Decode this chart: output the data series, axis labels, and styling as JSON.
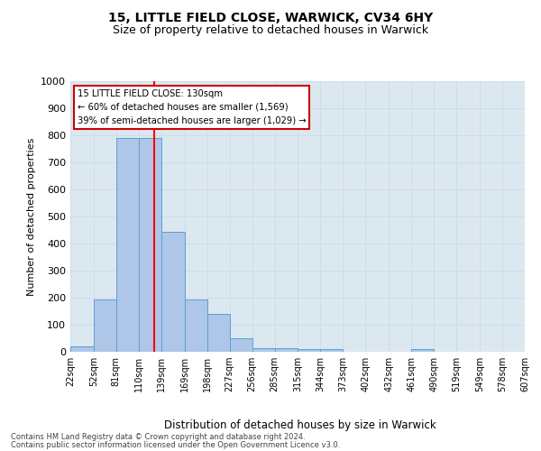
{
  "title1": "15, LITTLE FIELD CLOSE, WARWICK, CV34 6HY",
  "title2": "Size of property relative to detached houses in Warwick",
  "xlabel": "Distribution of detached houses by size in Warwick",
  "ylabel": "Number of detached properties",
  "annotation_line1": "15 LITTLE FIELD CLOSE: 130sqm",
  "annotation_line2": "← 60% of detached houses are smaller (1,569)",
  "annotation_line3": "39% of semi-detached houses are larger (1,029) →",
  "bar_edges": [
    22,
    52,
    81,
    110,
    139,
    169,
    198,
    227,
    256,
    285,
    315,
    344,
    373,
    402,
    432,
    461,
    490,
    519,
    549,
    578,
    607
  ],
  "bar_heights": [
    20,
    195,
    790,
    790,
    445,
    195,
    140,
    50,
    15,
    15,
    10,
    10,
    0,
    0,
    0,
    10,
    0,
    0,
    0,
    0
  ],
  "bar_color": "#aec6e8",
  "bar_edge_color": "#5a9fd4",
  "red_line_x": 130,
  "ylim": [
    0,
    1000
  ],
  "yticks": [
    0,
    100,
    200,
    300,
    400,
    500,
    600,
    700,
    800,
    900,
    1000
  ],
  "grid_color": "#c8d8e8",
  "background_color": "#dce8f0",
  "annotation_box_color": "#ffffff",
  "annotation_box_edgecolor": "#cc0000",
  "footer_line1": "Contains HM Land Registry data © Crown copyright and database right 2024.",
  "footer_line2": "Contains public sector information licensed under the Open Government Licence v3.0."
}
